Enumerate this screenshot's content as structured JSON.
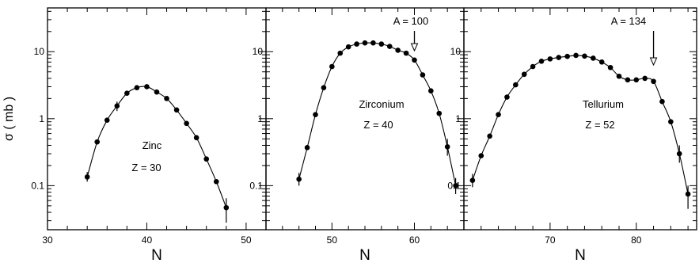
{
  "chart_data": {
    "type": "scatter",
    "ylabel": "σ ( mb )",
    "yscale": "log",
    "ylim": [
      0.022,
      45
    ],
    "y_ticks": [
      0.1,
      1,
      10
    ],
    "y_tick_labels": [
      "0.1",
      "1",
      "10"
    ],
    "connected_line": true,
    "error_bars": true,
    "panels": [
      {
        "element": "Zinc",
        "z_label": "Z = 30",
        "xlabel": "N",
        "xlim": [
          30,
          52
        ],
        "x_ticks": [
          30,
          40,
          50
        ],
        "x_tick_labels": [
          "30",
          "40",
          "50"
        ],
        "annotation": null,
        "points": [
          {
            "x": 34,
            "y": 0.135,
            "err": [
              0.115,
              0.16
            ]
          },
          {
            "x": 35,
            "y": 0.45
          },
          {
            "x": 36,
            "y": 0.95
          },
          {
            "x": 37,
            "y": 1.55,
            "err": [
              1.3,
              1.8
            ]
          },
          {
            "x": 38,
            "y": 2.4
          },
          {
            "x": 39,
            "y": 2.9
          },
          {
            "x": 40,
            "y": 3.0
          },
          {
            "x": 41,
            "y": 2.5
          },
          {
            "x": 42,
            "y": 2.0
          },
          {
            "x": 43,
            "y": 1.35
          },
          {
            "x": 44,
            "y": 0.85
          },
          {
            "x": 45,
            "y": 0.52
          },
          {
            "x": 46,
            "y": 0.25
          },
          {
            "x": 47,
            "y": 0.115
          },
          {
            "x": 48,
            "y": 0.047,
            "err": [
              0.028,
              0.065
            ]
          }
        ]
      },
      {
        "element": "Zirconium",
        "z_label": "Z = 40",
        "xlabel": "N",
        "xlim": [
          42,
          66
        ],
        "x_ticks": [
          50,
          60
        ],
        "x_tick_labels": [
          "50",
          "60"
        ],
        "annotation": {
          "text": "A = 100",
          "x": 60
        },
        "points": [
          {
            "x": 46,
            "y": 0.125,
            "err": [
              0.1,
              0.155
            ]
          },
          {
            "x": 47,
            "y": 0.37
          },
          {
            "x": 48,
            "y": 1.15
          },
          {
            "x": 49,
            "y": 2.9
          },
          {
            "x": 50,
            "y": 6.0
          },
          {
            "x": 51,
            "y": 9.5
          },
          {
            "x": 52,
            "y": 11.8
          },
          {
            "x": 53,
            "y": 13.0
          },
          {
            "x": 54,
            "y": 13.5
          },
          {
            "x": 55,
            "y": 13.5
          },
          {
            "x": 56,
            "y": 13.0
          },
          {
            "x": 57,
            "y": 12.0
          },
          {
            "x": 58,
            "y": 10.5
          },
          {
            "x": 59,
            "y": 9.5
          },
          {
            "x": 60,
            "y": 7.5
          },
          {
            "x": 61,
            "y": 4.5
          },
          {
            "x": 62,
            "y": 2.6
          },
          {
            "x": 63,
            "y": 1.2
          },
          {
            "x": 64,
            "y": 0.38,
            "err": [
              0.28,
              0.5
            ]
          },
          {
            "x": 65,
            "y": 0.1,
            "err": [
              0.075,
              0.13
            ]
          }
        ]
      },
      {
        "element": "Tellurium",
        "z_label": "Z = 52",
        "xlabel": "N",
        "xlim": [
          60,
          87
        ],
        "x_ticks": [
          70,
          80
        ],
        "x_tick_labels": [
          "70",
          "80"
        ],
        "annotation": {
          "text": "A = 134",
          "x": 82
        },
        "points": [
          {
            "x": 61,
            "y": 0.12,
            "err": [
              0.095,
              0.15
            ]
          },
          {
            "x": 62,
            "y": 0.28
          },
          {
            "x": 63,
            "y": 0.55
          },
          {
            "x": 64,
            "y": 1.15
          },
          {
            "x": 65,
            "y": 2.1
          },
          {
            "x": 66,
            "y": 3.2
          },
          {
            "x": 67,
            "y": 4.6
          },
          {
            "x": 68,
            "y": 6.0
          },
          {
            "x": 69,
            "y": 7.2
          },
          {
            "x": 70,
            "y": 7.8
          },
          {
            "x": 71,
            "y": 8.2
          },
          {
            "x": 72,
            "y": 8.5
          },
          {
            "x": 73,
            "y": 8.8
          },
          {
            "x": 74,
            "y": 8.6
          },
          {
            "x": 75,
            "y": 8.0
          },
          {
            "x": 76,
            "y": 7.0
          },
          {
            "x": 77,
            "y": 5.8
          },
          {
            "x": 78,
            "y": 4.3
          },
          {
            "x": 79,
            "y": 3.8
          },
          {
            "x": 80,
            "y": 3.8
          },
          {
            "x": 81,
            "y": 4.0
          },
          {
            "x": 82,
            "y": 3.6
          },
          {
            "x": 83,
            "y": 1.8
          },
          {
            "x": 84,
            "y": 0.9
          },
          {
            "x": 85,
            "y": 0.3,
            "err": [
              0.22,
              0.4
            ]
          },
          {
            "x": 86,
            "y": 0.075,
            "err": [
              0.045,
              0.1
            ]
          }
        ]
      }
    ]
  }
}
